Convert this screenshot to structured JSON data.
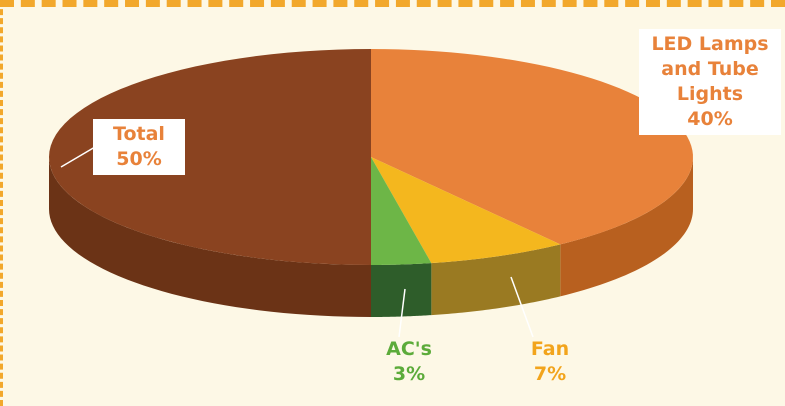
{
  "chart_data": {
    "type": "pie",
    "categories": [
      "LED Lamps and Tube Lights",
      "Fan",
      "AC's",
      "Total"
    ],
    "values": [
      40,
      7,
      3,
      50
    ],
    "value_labels": [
      "40%",
      "7%",
      "3%",
      "50%"
    ],
    "colors": [
      "#e8823a",
      "#f4b71e",
      "#6db647",
      "#8a4320"
    ],
    "side_colors": [
      "#b8601f",
      "#9a7a22",
      "#2e5d2a",
      "#6b3316"
    ]
  }
}
